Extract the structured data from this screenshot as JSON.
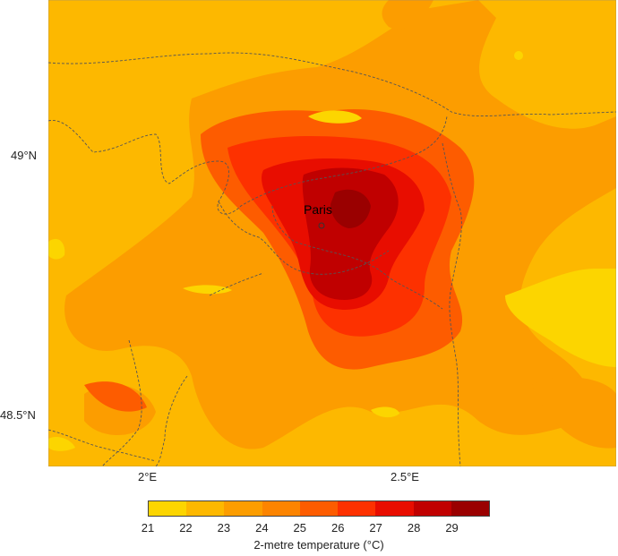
{
  "map": {
    "city_label": "Paris",
    "lat_labels": [
      "49°N",
      "48.5°N"
    ],
    "lon_labels": [
      "2°E",
      "2.5°E"
    ]
  },
  "colorbar": {
    "ticks": [
      "21",
      "22",
      "23",
      "24",
      "25",
      "26",
      "27",
      "28",
      "29"
    ],
    "colors": [
      "#fcd500",
      "#fdb800",
      "#fc9d00",
      "#fc8400",
      "#fd5c00",
      "#fd3100",
      "#e80d00",
      "#c00000",
      "#9a0000"
    ],
    "label": "2-metre temperature (°C)"
  }
}
